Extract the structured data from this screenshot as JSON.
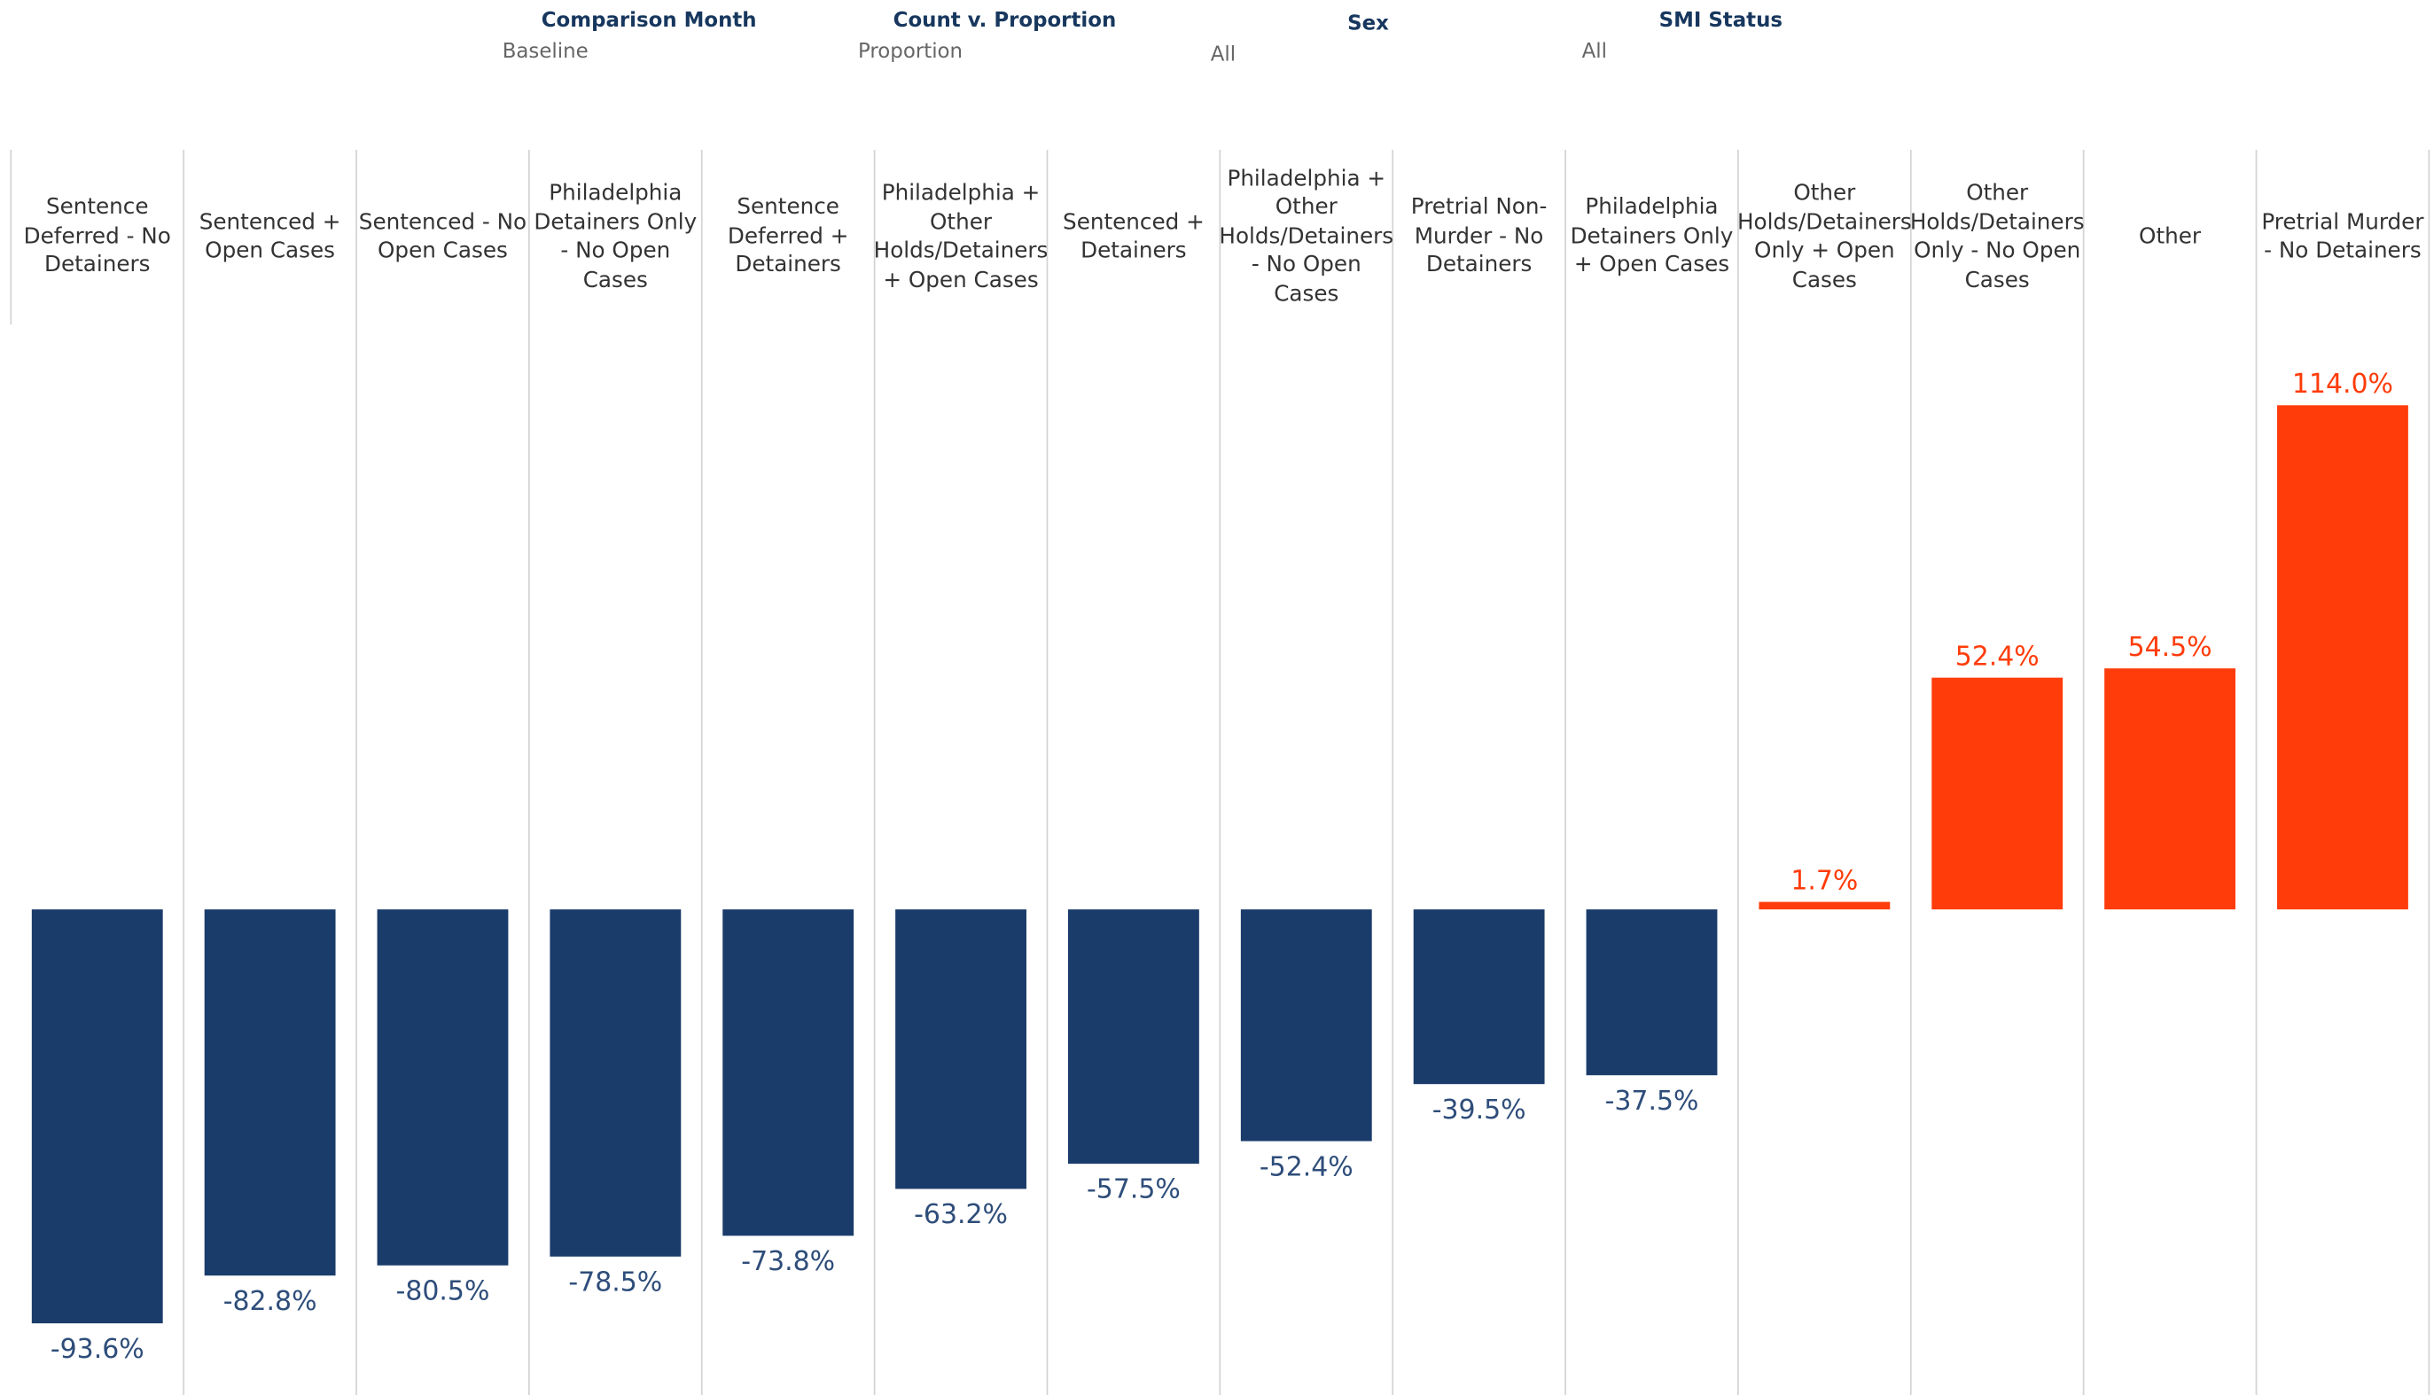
{
  "filters": [
    {
      "label": "Comparison Month",
      "value": "Baseline"
    },
    {
      "label": "Count v. Proportion",
      "value": "Proportion"
    },
    {
      "label": "Sex",
      "value": "All"
    },
    {
      "label": "SMI Status",
      "value": "All"
    }
  ],
  "chart_data": {
    "type": "bar",
    "categories": [
      "Sentence Deferred - No Detainers",
      "Sentenced + Open Cases",
      "Sentenced - No Open Cases",
      "Philadelphia Detainers Only - No Open Cases",
      "Sentence Deferred + Detainers",
      "Philadelphia + Other Holds/Detainers + Open Cases",
      "Sentenced + Detainers",
      "Philadelphia + Other Holds/Detainers - No Open Cases",
      "Pretrial Non-Murder - No Detainers",
      "Philadelphia Detainers Only + Open Cases",
      "Other Holds/Detainers Only + Open Cases",
      "Other Holds/Detainers Only - No Open Cases",
      "Other",
      "Pretrial Murder - No Detainers"
    ],
    "values": [
      -93.6,
      -82.8,
      -80.5,
      -78.5,
      -73.8,
      -63.2,
      -57.5,
      -52.4,
      -39.5,
      -37.5,
      1.7,
      52.4,
      54.5,
      114.0
    ],
    "value_labels": [
      "-93.6%",
      "-82.8%",
      "-80.5%",
      "-78.5%",
      "-73.8%",
      "-63.2%",
      "-57.5%",
      "-52.4%",
      "-39.5%",
      "-37.5%",
      "1.7%",
      "52.4%",
      "54.5%",
      "114.0%"
    ],
    "colors": {
      "negative": "#1a3c6b",
      "positive": "#ff3c0a"
    }
  }
}
